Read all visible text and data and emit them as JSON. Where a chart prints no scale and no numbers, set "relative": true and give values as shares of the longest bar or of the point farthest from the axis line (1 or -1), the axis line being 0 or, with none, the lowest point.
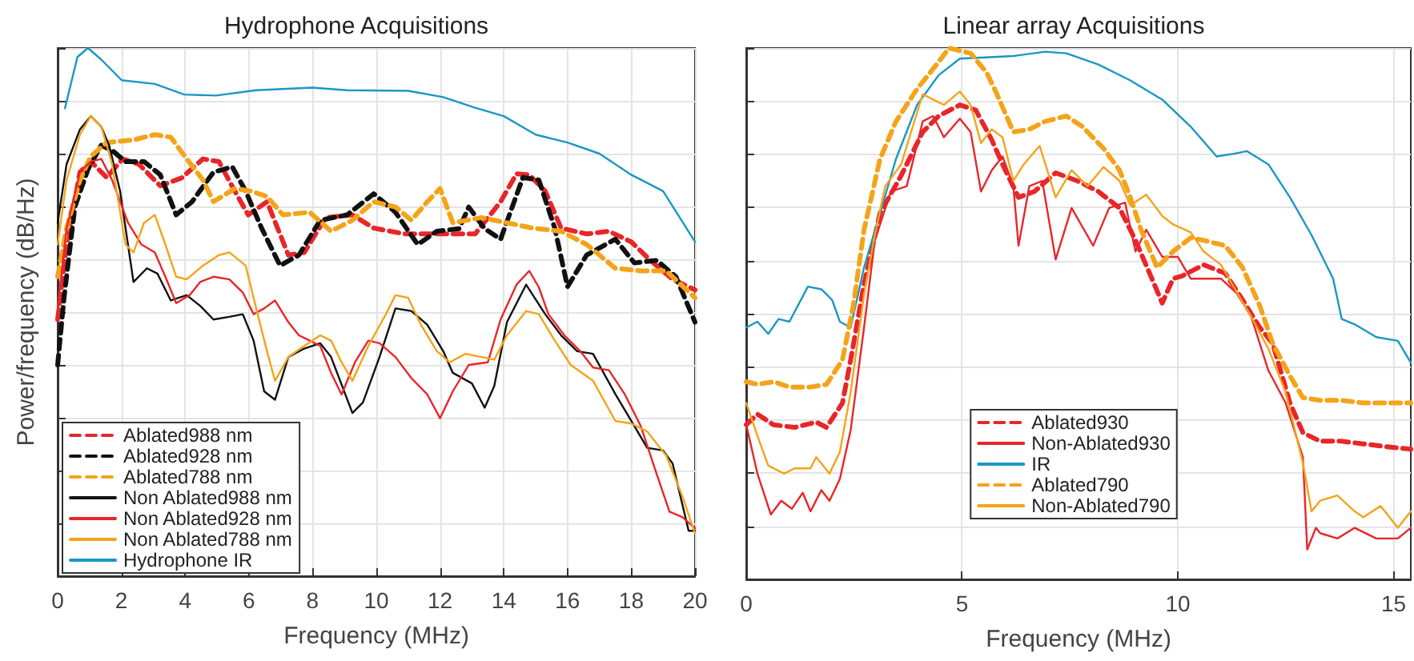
{
  "chart_data": [
    {
      "type": "line",
      "title": "Hydrophone Acquisitions",
      "xlabel": "Frequency (MHz)",
      "ylabel": "Power/frequency (dB/Hz)",
      "relative": true,
      "xlim": [
        0,
        20
      ],
      "xticks": [
        0,
        2,
        4,
        6,
        8,
        10,
        12,
        14,
        16,
        18,
        20
      ],
      "tick_labels": "x",
      "grid": true,
      "legend": "bottom left",
      "marker": "none",
      "series": [
        {
          "name": "Ablated988 nm",
          "color": "#e8262a",
          "line_style": "dashed",
          "x": [
            0,
            0.28,
            0.7,
            1.04,
            1.54,
            2.04,
            2.55,
            3.22,
            3.89,
            4.56,
            5.06,
            5.56,
            5.98,
            6.57,
            7.24,
            7.74,
            8.41,
            9.25,
            9.92,
            10.9,
            12.1,
            13.1,
            13.9,
            14.4,
            14.8,
            15.3,
            15.8,
            16.6,
            17.3,
            18.0,
            18.6,
            19.3,
            20.0
          ],
          "values": [
            0.486,
            0.628,
            0.765,
            0.785,
            0.755,
            0.79,
            0.78,
            0.739,
            0.754,
            0.79,
            0.785,
            0.729,
            0.684,
            0.709,
            0.608,
            0.613,
            0.679,
            0.684,
            0.659,
            0.648,
            0.648,
            0.648,
            0.709,
            0.762,
            0.76,
            0.729,
            0.659,
            0.648,
            0.653,
            0.633,
            0.598,
            0.562,
            0.542
          ]
        },
        {
          "name": "Ablated928 nm",
          "color": "#111111",
          "line_style": "dashed",
          "x": [
            0,
            0.2,
            0.54,
            0.95,
            1.37,
            1.71,
            2.13,
            2.71,
            3.22,
            3.72,
            4.22,
            4.89,
            5.48,
            5.9,
            6.4,
            6.98,
            7.57,
            8.24,
            9.08,
            9.92,
            10.6,
            11.3,
            11.9,
            12.6,
            12.9,
            13.4,
            13.9,
            14.6,
            15.1,
            15.6,
            16.0,
            16.6,
            17.5,
            18.1,
            18.8,
            19.4,
            20.0
          ],
          "values": [
            0.4,
            0.527,
            0.699,
            0.77,
            0.816,
            0.806,
            0.785,
            0.785,
            0.76,
            0.684,
            0.709,
            0.765,
            0.775,
            0.729,
            0.659,
            0.588,
            0.608,
            0.674,
            0.684,
            0.724,
            0.689,
            0.628,
            0.653,
            0.658,
            0.699,
            0.658,
            0.638,
            0.755,
            0.75,
            0.659,
            0.548,
            0.608,
            0.638,
            0.593,
            0.598,
            0.567,
            0.481
          ]
        },
        {
          "name": "Ablated788 nm",
          "color": "#f5a31a",
          "line_style": "dashed",
          "x": [
            0,
            0.28,
            0.7,
            1.04,
            1.54,
            2.38,
            3.05,
            3.55,
            4.05,
            4.56,
            4.89,
            5.56,
            6.06,
            6.57,
            7.07,
            7.91,
            8.58,
            9.25,
            9.92,
            10.6,
            11.1,
            11.6,
            12.0,
            12.4,
            13.3,
            14.1,
            14.9,
            15.8,
            16.6,
            17.5,
            18.3,
            19.1,
            20.0
          ],
          "values": [
            0.567,
            0.659,
            0.75,
            0.795,
            0.821,
            0.826,
            0.836,
            0.831,
            0.79,
            0.75,
            0.709,
            0.734,
            0.729,
            0.719,
            0.684,
            0.689,
            0.653,
            0.674,
            0.709,
            0.699,
            0.674,
            0.709,
            0.734,
            0.669,
            0.679,
            0.669,
            0.659,
            0.653,
            0.628,
            0.583,
            0.578,
            0.578,
            0.527
          ]
        },
        {
          "name": "Non Ablated988 nm",
          "color": "#111111",
          "line_style": "solid",
          "x": [
            0,
            0.28,
            0.7,
            1.04,
            1.37,
            1.62,
            1.96,
            2.38,
            2.8,
            3.13,
            3.55,
            4.05,
            4.47,
            4.89,
            5.39,
            5.81,
            6.15,
            6.48,
            6.82,
            7.24,
            7.74,
            8.24,
            8.58,
            9.25,
            9.58,
            10.1,
            10.6,
            11.1,
            11.6,
            12.1,
            12.4,
            13.0,
            13.4,
            13.7,
            14.1,
            14.7,
            15.3,
            15.8,
            16.3,
            16.8,
            17.5,
            18.0,
            18.5,
            19.0,
            19.3,
            19.8,
            20.0
          ],
          "values": [
            0.669,
            0.78,
            0.846,
            0.871,
            0.851,
            0.815,
            0.729,
            0.557,
            0.583,
            0.573,
            0.522,
            0.532,
            0.512,
            0.486,
            0.491,
            0.496,
            0.446,
            0.35,
            0.334,
            0.415,
            0.431,
            0.441,
            0.415,
            0.309,
            0.329,
            0.415,
            0.507,
            0.502,
            0.476,
            0.426,
            0.385,
            0.365,
            0.319,
            0.36,
            0.481,
            0.552,
            0.496,
            0.456,
            0.426,
            0.421,
            0.345,
            0.294,
            0.243,
            0.238,
            0.213,
            0.086,
            0.086
          ]
        },
        {
          "name": "Non Ablated928 nm",
          "color": "#e8262a",
          "line_style": "solid",
          "x": [
            0,
            0.28,
            0.7,
            1.04,
            1.37,
            1.71,
            2.21,
            2.63,
            3.05,
            3.38,
            3.72,
            4.14,
            4.47,
            4.89,
            5.39,
            5.81,
            6.15,
            6.48,
            6.82,
            7.24,
            7.57,
            7.91,
            8.24,
            8.58,
            8.91,
            9.33,
            9.75,
            10.1,
            10.6,
            11.1,
            11.6,
            12.0,
            12.4,
            12.9,
            13.5,
            13.9,
            14.4,
            14.8,
            15.1,
            15.4,
            15.9,
            16.4,
            16.8,
            17.3,
            17.8,
            18.3,
            18.8,
            19.2,
            19.6,
            20.0
          ],
          "values": [
            0.507,
            0.658,
            0.765,
            0.785,
            0.79,
            0.75,
            0.669,
            0.628,
            0.613,
            0.567,
            0.517,
            0.532,
            0.557,
            0.567,
            0.562,
            0.537,
            0.496,
            0.507,
            0.522,
            0.481,
            0.456,
            0.446,
            0.436,
            0.385,
            0.344,
            0.405,
            0.446,
            0.441,
            0.415,
            0.375,
            0.344,
            0.299,
            0.35,
            0.4,
            0.405,
            0.486,
            0.552,
            0.578,
            0.547,
            0.496,
            0.456,
            0.426,
            0.395,
            0.39,
            0.344,
            0.284,
            0.193,
            0.122,
            0.112,
            0.091
          ]
        },
        {
          "name": "Non Ablated788 nm",
          "color": "#f5a31a",
          "line_style": "solid",
          "x": [
            0,
            0.28,
            0.7,
            1.04,
            1.37,
            1.71,
            2.13,
            2.38,
            2.71,
            3.05,
            3.38,
            3.72,
            4.05,
            4.56,
            5.06,
            5.39,
            5.9,
            6.23,
            6.57,
            6.82,
            7.24,
            7.74,
            8.24,
            8.58,
            8.91,
            9.25,
            9.75,
            10.3,
            10.6,
            11.0,
            11.4,
            11.9,
            12.3,
            12.8,
            13.3,
            13.7,
            14.1,
            14.7,
            15.1,
            15.6,
            16.1,
            16.8,
            17.5,
            18.0,
            18.5,
            19.1,
            19.6,
            20.0
          ],
          "values": [
            0.628,
            0.75,
            0.836,
            0.871,
            0.851,
            0.78,
            0.628,
            0.613,
            0.669,
            0.684,
            0.628,
            0.567,
            0.562,
            0.588,
            0.608,
            0.613,
            0.588,
            0.507,
            0.426,
            0.37,
            0.415,
            0.436,
            0.456,
            0.446,
            0.405,
            0.37,
            0.436,
            0.496,
            0.532,
            0.527,
            0.476,
            0.426,
            0.405,
            0.421,
            0.415,
            0.41,
            0.456,
            0.502,
            0.496,
            0.446,
            0.4,
            0.37,
            0.294,
            0.289,
            0.274,
            0.228,
            0.152,
            0.081
          ]
        },
        {
          "name": "Hydrophone IR",
          "color": "#1a97c4",
          "line_style": "solid",
          "x": [
            0.23,
            0.62,
            0.95,
            1.37,
            2.01,
            3.05,
            3.97,
            4.97,
            6.23,
            7.99,
            9.08,
            11.0,
            12.1,
            13.1,
            14.0,
            15.0,
            16.0,
            17.0,
            18.0,
            19.0,
            20.0
          ],
          "values": [
            0.886,
            0.983,
            1.0,
            0.978,
            0.939,
            0.932,
            0.912,
            0.91,
            0.92,
            0.925,
            0.92,
            0.919,
            0.907,
            0.887,
            0.871,
            0.836,
            0.821,
            0.8,
            0.76,
            0.729,
            0.633
          ]
        }
      ]
    },
    {
      "type": "line",
      "title": "Linear array Acquisitions",
      "xlabel": "Frequency (MHz)",
      "relative": true,
      "xlim": [
        0,
        15.4
      ],
      "xticks": [
        0,
        5,
        10,
        15
      ],
      "tick_labels": "x",
      "grid": true,
      "legend": "bottom",
      "marker": "none",
      "series": [
        {
          "name": "Ablated930",
          "color": "#e8262a",
          "line_style": "dashed",
          "x": [
            0,
            0.26,
            0.63,
            1.12,
            1.62,
            1.86,
            2.23,
            2.42,
            2.73,
            3.1,
            3.59,
            4.09,
            4.46,
            4.95,
            5.32,
            5.69,
            5.94,
            6.31,
            6.68,
            7.17,
            7.67,
            8.16,
            8.65,
            9.02,
            9.4,
            9.64,
            9.89,
            10.1,
            10.6,
            11.1,
            11.5,
            11.9,
            12.2,
            12.6,
            12.9,
            13.3,
            13.8,
            14.3,
            14.8,
            15.4
          ],
          "values": [
            0.291,
            0.311,
            0.291,
            0.286,
            0.296,
            0.286,
            0.332,
            0.413,
            0.556,
            0.689,
            0.76,
            0.842,
            0.872,
            0.893,
            0.883,
            0.827,
            0.781,
            0.719,
            0.73,
            0.765,
            0.75,
            0.73,
            0.699,
            0.638,
            0.566,
            0.52,
            0.566,
            0.571,
            0.592,
            0.576,
            0.526,
            0.474,
            0.444,
            0.332,
            0.276,
            0.26,
            0.26,
            0.255,
            0.25,
            0.245
          ]
        },
        {
          "name": "Non-Ablated930",
          "color": "#e8262a",
          "line_style": "solid",
          "x": [
            0,
            0.26,
            0.57,
            0.81,
            1.06,
            1.31,
            1.49,
            1.74,
            1.93,
            2.17,
            2.42,
            2.73,
            2.98,
            3.35,
            3.72,
            4.09,
            4.33,
            4.58,
            4.95,
            5.2,
            5.44,
            5.69,
            5.94,
            6.19,
            6.31,
            6.56,
            6.86,
            7.17,
            7.54,
            8.04,
            8.41,
            8.78,
            9.02,
            9.27,
            9.64,
            10.0,
            10.3,
            10.6,
            11.0,
            11.4,
            11.7,
            12.1,
            12.5,
            12.9,
            13.0,
            13.2,
            13.3,
            13.7,
            14.1,
            14.6,
            15.1,
            15.4
          ],
          "values": [
            0.291,
            0.199,
            0.122,
            0.148,
            0.133,
            0.163,
            0.128,
            0.168,
            0.148,
            0.189,
            0.281,
            0.474,
            0.638,
            0.73,
            0.74,
            0.862,
            0.872,
            0.832,
            0.867,
            0.842,
            0.73,
            0.77,
            0.796,
            0.74,
            0.628,
            0.74,
            0.75,
            0.602,
            0.699,
            0.628,
            0.699,
            0.709,
            0.617,
            0.658,
            0.607,
            0.607,
            0.566,
            0.566,
            0.566,
            0.536,
            0.495,
            0.393,
            0.332,
            0.23,
            0.056,
            0.097,
            0.087,
            0.077,
            0.097,
            0.077,
            0.077,
            0.097
          ]
        },
        {
          "name": "IR",
          "color": "#1a97c4",
          "line_style": "solid",
          "x": [
            0,
            0.26,
            0.51,
            0.75,
            1.0,
            1.43,
            1.74,
            1.99,
            2.17,
            2.42,
            2.73,
            3.1,
            3.47,
            3.96,
            4.46,
            4.95,
            5.44,
            6.19,
            6.93,
            7.42,
            8.16,
            8.9,
            9.64,
            10.3,
            10.9,
            11.3,
            11.6,
            12.1,
            12.6,
            13.1,
            13.6,
            13.8,
            14.1,
            14.6,
            15.1,
            15.4
          ],
          "values": [
            0.474,
            0.485,
            0.462,
            0.49,
            0.485,
            0.551,
            0.546,
            0.526,
            0.485,
            0.474,
            0.587,
            0.689,
            0.791,
            0.893,
            0.949,
            0.98,
            0.982,
            0.985,
            0.993,
            0.99,
            0.969,
            0.939,
            0.903,
            0.852,
            0.796,
            0.801,
            0.806,
            0.781,
            0.719,
            0.648,
            0.566,
            0.49,
            0.48,
            0.456,
            0.449,
            0.408
          ]
        },
        {
          "name": "Ablated790",
          "color": "#f5a31a",
          "line_style": "dashed",
          "x": [
            0,
            0.26,
            0.63,
            1.0,
            1.49,
            1.86,
            2.23,
            2.48,
            2.73,
            3.1,
            3.47,
            3.96,
            4.46,
            4.7,
            5.2,
            5.57,
            5.81,
            6.19,
            6.56,
            6.93,
            7.42,
            7.79,
            8.28,
            8.65,
            8.9,
            9.15,
            9.52,
            9.89,
            10.3,
            10.6,
            11.1,
            11.5,
            11.9,
            12.2,
            12.6,
            12.9,
            13.3,
            13.8,
            14.3,
            14.8,
            15.4
          ],
          "values": [
            0.372,
            0.367,
            0.372,
            0.362,
            0.362,
            0.367,
            0.413,
            0.515,
            0.658,
            0.791,
            0.862,
            0.923,
            0.974,
            1.0,
            0.99,
            0.954,
            0.913,
            0.842,
            0.847,
            0.862,
            0.872,
            0.852,
            0.811,
            0.77,
            0.719,
            0.658,
            0.587,
            0.617,
            0.643,
            0.638,
            0.628,
            0.587,
            0.515,
            0.444,
            0.383,
            0.342,
            0.337,
            0.337,
            0.332,
            0.332,
            0.332
          ]
        },
        {
          "name": "Non-Ablated790",
          "color": "#f5a31a",
          "line_style": "solid",
          "x": [
            0,
            0.26,
            0.51,
            0.88,
            1.12,
            1.49,
            1.62,
            1.93,
            2.17,
            2.42,
            2.73,
            2.98,
            3.22,
            3.59,
            4.09,
            4.33,
            4.58,
            4.95,
            5.2,
            5.44,
            5.69,
            5.94,
            6.19,
            6.43,
            6.8,
            7.17,
            7.54,
            7.91,
            8.28,
            8.65,
            8.9,
            9.27,
            9.64,
            9.89,
            10.3,
            10.6,
            11.0,
            11.4,
            11.7,
            12.1,
            12.5,
            12.9,
            13.1,
            13.3,
            13.7,
            14.1,
            14.3,
            14.7,
            15.1,
            15.4
          ],
          "values": [
            0.332,
            0.27,
            0.214,
            0.199,
            0.209,
            0.209,
            0.23,
            0.199,
            0.24,
            0.352,
            0.536,
            0.648,
            0.74,
            0.781,
            0.913,
            0.903,
            0.893,
            0.918,
            0.893,
            0.821,
            0.847,
            0.832,
            0.75,
            0.781,
            0.816,
            0.719,
            0.77,
            0.74,
            0.776,
            0.75,
            0.704,
            0.724,
            0.684,
            0.668,
            0.653,
            0.617,
            0.592,
            0.536,
            0.495,
            0.434,
            0.352,
            0.219,
            0.128,
            0.148,
            0.158,
            0.128,
            0.117,
            0.138,
            0.097,
            0.128
          ]
        }
      ]
    }
  ]
}
